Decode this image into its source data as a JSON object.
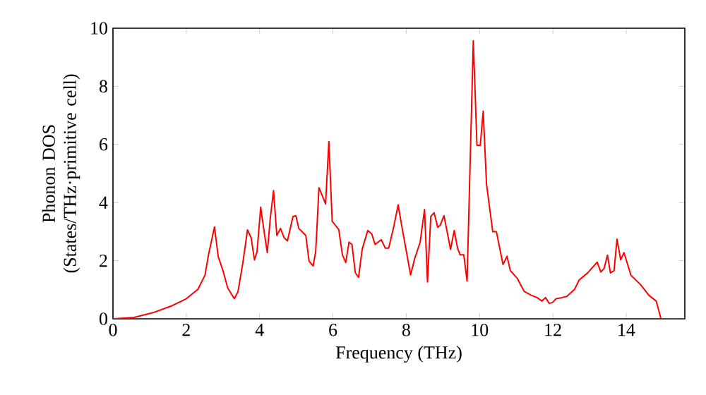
{
  "chart_data": {
    "type": "line",
    "xlabel": "Frequency (THz)",
    "ylabel": "Phonon DOS (States/THz·primitive cell)",
    "xlim": [
      0,
      15.6
    ],
    "ylim": [
      0,
      10
    ],
    "xticks": [
      0,
      2,
      4,
      6,
      8,
      10,
      12,
      14
    ],
    "yticks": [
      0,
      2,
      4,
      6,
      8,
      10
    ],
    "grid": false,
    "marker": "none",
    "line_style": "solid",
    "series": [
      {
        "color": "#ff0000",
        "x": [
          0,
          0.58,
          1.09,
          1.61,
          2.0,
          2.32,
          2.51,
          2.61,
          2.77,
          2.87,
          3.0,
          3.13,
          3.31,
          3.41,
          3.54,
          3.67,
          3.77,
          3.86,
          3.93,
          4.03,
          4.12,
          4.21,
          4.29,
          4.38,
          4.47,
          4.57,
          4.67,
          4.76,
          4.91,
          4.99,
          5.07,
          5.26,
          5.35,
          5.46,
          5.53,
          5.62,
          5.71,
          5.8,
          5.89,
          5.98,
          6.16,
          6.26,
          6.35,
          6.44,
          6.52,
          6.61,
          6.7,
          6.8,
          6.95,
          7.06,
          7.15,
          7.32,
          7.43,
          7.52,
          7.65,
          7.78,
          7.89,
          8.12,
          8.23,
          8.38,
          8.5,
          8.58,
          8.67,
          8.76,
          8.86,
          8.93,
          9.03,
          9.21,
          9.31,
          9.4,
          9.47,
          9.57,
          9.66,
          9.83,
          9.93,
          10.02,
          10.1,
          10.19,
          10.36,
          10.46,
          10.64,
          10.75,
          10.84,
          11.03,
          11.22,
          11.41,
          11.57,
          11.7,
          11.8,
          11.9,
          11.99,
          12.09,
          12.25,
          12.38,
          12.59,
          12.72,
          12.95,
          13.21,
          13.31,
          13.4,
          13.49,
          13.57,
          13.67,
          13.75,
          13.85,
          13.94,
          14.13,
          14.39,
          14.62,
          14.82,
          14.95,
          15.6
        ],
        "values": [
          0,
          0.05,
          0.21,
          0.45,
          0.69,
          1.02,
          1.5,
          2.23,
          3.16,
          2.15,
          1.66,
          1.06,
          0.69,
          0.93,
          1.9,
          3.06,
          2.79,
          2.03,
          2.31,
          3.84,
          3.03,
          2.28,
          3.44,
          4.41,
          2.87,
          3.11,
          2.79,
          2.68,
          3.52,
          3.55,
          3.11,
          2.87,
          1.98,
          1.82,
          2.3,
          4.51,
          4.24,
          3.95,
          6.1,
          3.36,
          3.07,
          2.2,
          1.94,
          2.64,
          2.56,
          1.59,
          1.43,
          2.4,
          3.04,
          2.92,
          2.56,
          2.72,
          2.43,
          2.43,
          3.11,
          3.92,
          3.11,
          1.51,
          2.07,
          2.64,
          3.76,
          1.27,
          3.52,
          3.65,
          3.15,
          3.23,
          3.55,
          2.39,
          3.04,
          2.43,
          2.2,
          2.2,
          1.3,
          9.57,
          5.97,
          5.97,
          7.15,
          4.64,
          3.0,
          3.0,
          1.87,
          2.15,
          1.66,
          1.39,
          0.94,
          0.81,
          0.73,
          0.61,
          0.73,
          0.53,
          0.56,
          0.69,
          0.73,
          0.77,
          1.01,
          1.34,
          1.58,
          1.95,
          1.61,
          1.74,
          2.19,
          1.58,
          1.66,
          2.74,
          2.03,
          2.28,
          1.5,
          1.18,
          0.81,
          0.61,
          0,
          0
        ]
      }
    ]
  }
}
